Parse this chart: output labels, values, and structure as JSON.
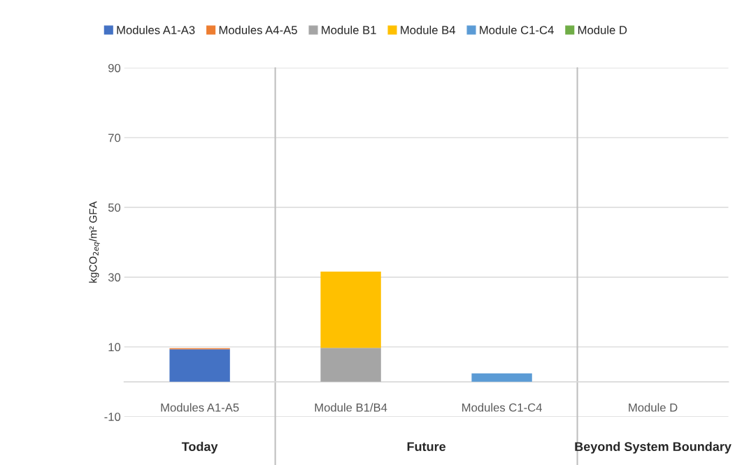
{
  "chart_data": {
    "type": "bar",
    "stacked": true,
    "ylabel": "kgCO$_{2eq}$/m² GFA",
    "categories": [
      "Modules A1-A5",
      "Module B1/B4",
      "Modules C1-C4",
      "Module D"
    ],
    "series": [
      {
        "name": "Modules A1-A3",
        "color": "#4472c4",
        "values": [
          9.3,
          null,
          null,
          null
        ]
      },
      {
        "name": "Modules A4-A5",
        "color": "#ed7d31",
        "values": [
          0.3,
          null,
          null,
          null
        ]
      },
      {
        "name": "Module B1",
        "color": "#a5a5a5",
        "values": [
          null,
          9.7,
          null,
          null
        ]
      },
      {
        "name": "Module B4",
        "color": "#ffc000",
        "values": [
          null,
          21.9,
          null,
          null
        ]
      },
      {
        "name": "Module C1-C4",
        "color": "#5b9bd5",
        "values": [
          null,
          null,
          2.4,
          null
        ]
      },
      {
        "name": "Module D",
        "color": "#70ad47",
        "values": [
          null,
          null,
          null,
          null
        ]
      }
    ],
    "annotations": [
      "Today",
      "Future",
      "Beyond System Boundary"
    ],
    "ylim": [
      -10,
      90
    ],
    "yticks": [
      -10,
      10,
      30,
      50,
      70,
      90
    ],
    "grid": "y",
    "legend": "top"
  }
}
